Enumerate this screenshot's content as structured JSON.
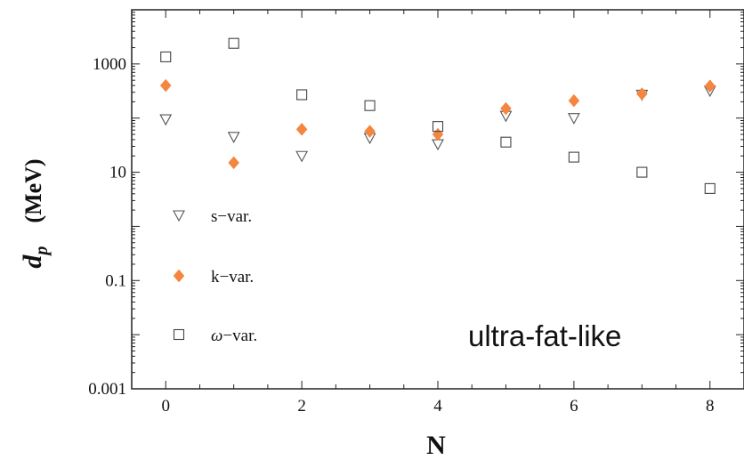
{
  "chart_data": {
    "type": "scatter",
    "x_axis": {
      "label": "N",
      "range": [
        -0.5,
        8.5
      ],
      "ticks": [
        0,
        2,
        4,
        6,
        8
      ]
    },
    "y_axis": {
      "label_main": "d",
      "label_sub": "p",
      "label_unit": "(MeV)",
      "scale": "log",
      "range": [
        0.001,
        10000
      ],
      "ticks": [
        0.001,
        0.1,
        10,
        1000
      ],
      "tick_labels": [
        "0.001",
        "0.1",
        "10",
        "1000"
      ]
    },
    "series": [
      {
        "name": "s−var.",
        "marker": "triangle-down-open",
        "color": "#555555",
        "x": [
          0,
          1,
          2,
          3,
          4,
          5,
          6,
          7,
          8
        ],
        "y": [
          95,
          45,
          20,
          43,
          33,
          110,
          100,
          270,
          320
        ]
      },
      {
        "name": "k−var.",
        "marker": "diamond-filled",
        "color": "#f4863f",
        "x": [
          0,
          1,
          2,
          3,
          4,
          5,
          6,
          7,
          8
        ],
        "y": [
          400,
          15,
          62,
          57,
          50,
          150,
          210,
          280,
          390
        ]
      },
      {
        "name": "ω−var.",
        "marker": "square-open",
        "color": "#444444",
        "x": [
          0,
          1,
          2,
          3,
          4,
          5,
          6,
          7,
          8
        ],
        "y": [
          1350,
          2400,
          270,
          170,
          70,
          36,
          19,
          10,
          5
        ]
      }
    ],
    "legend_position": "bottom-left",
    "annotation": "ultra-fat-like",
    "grid": false
  }
}
